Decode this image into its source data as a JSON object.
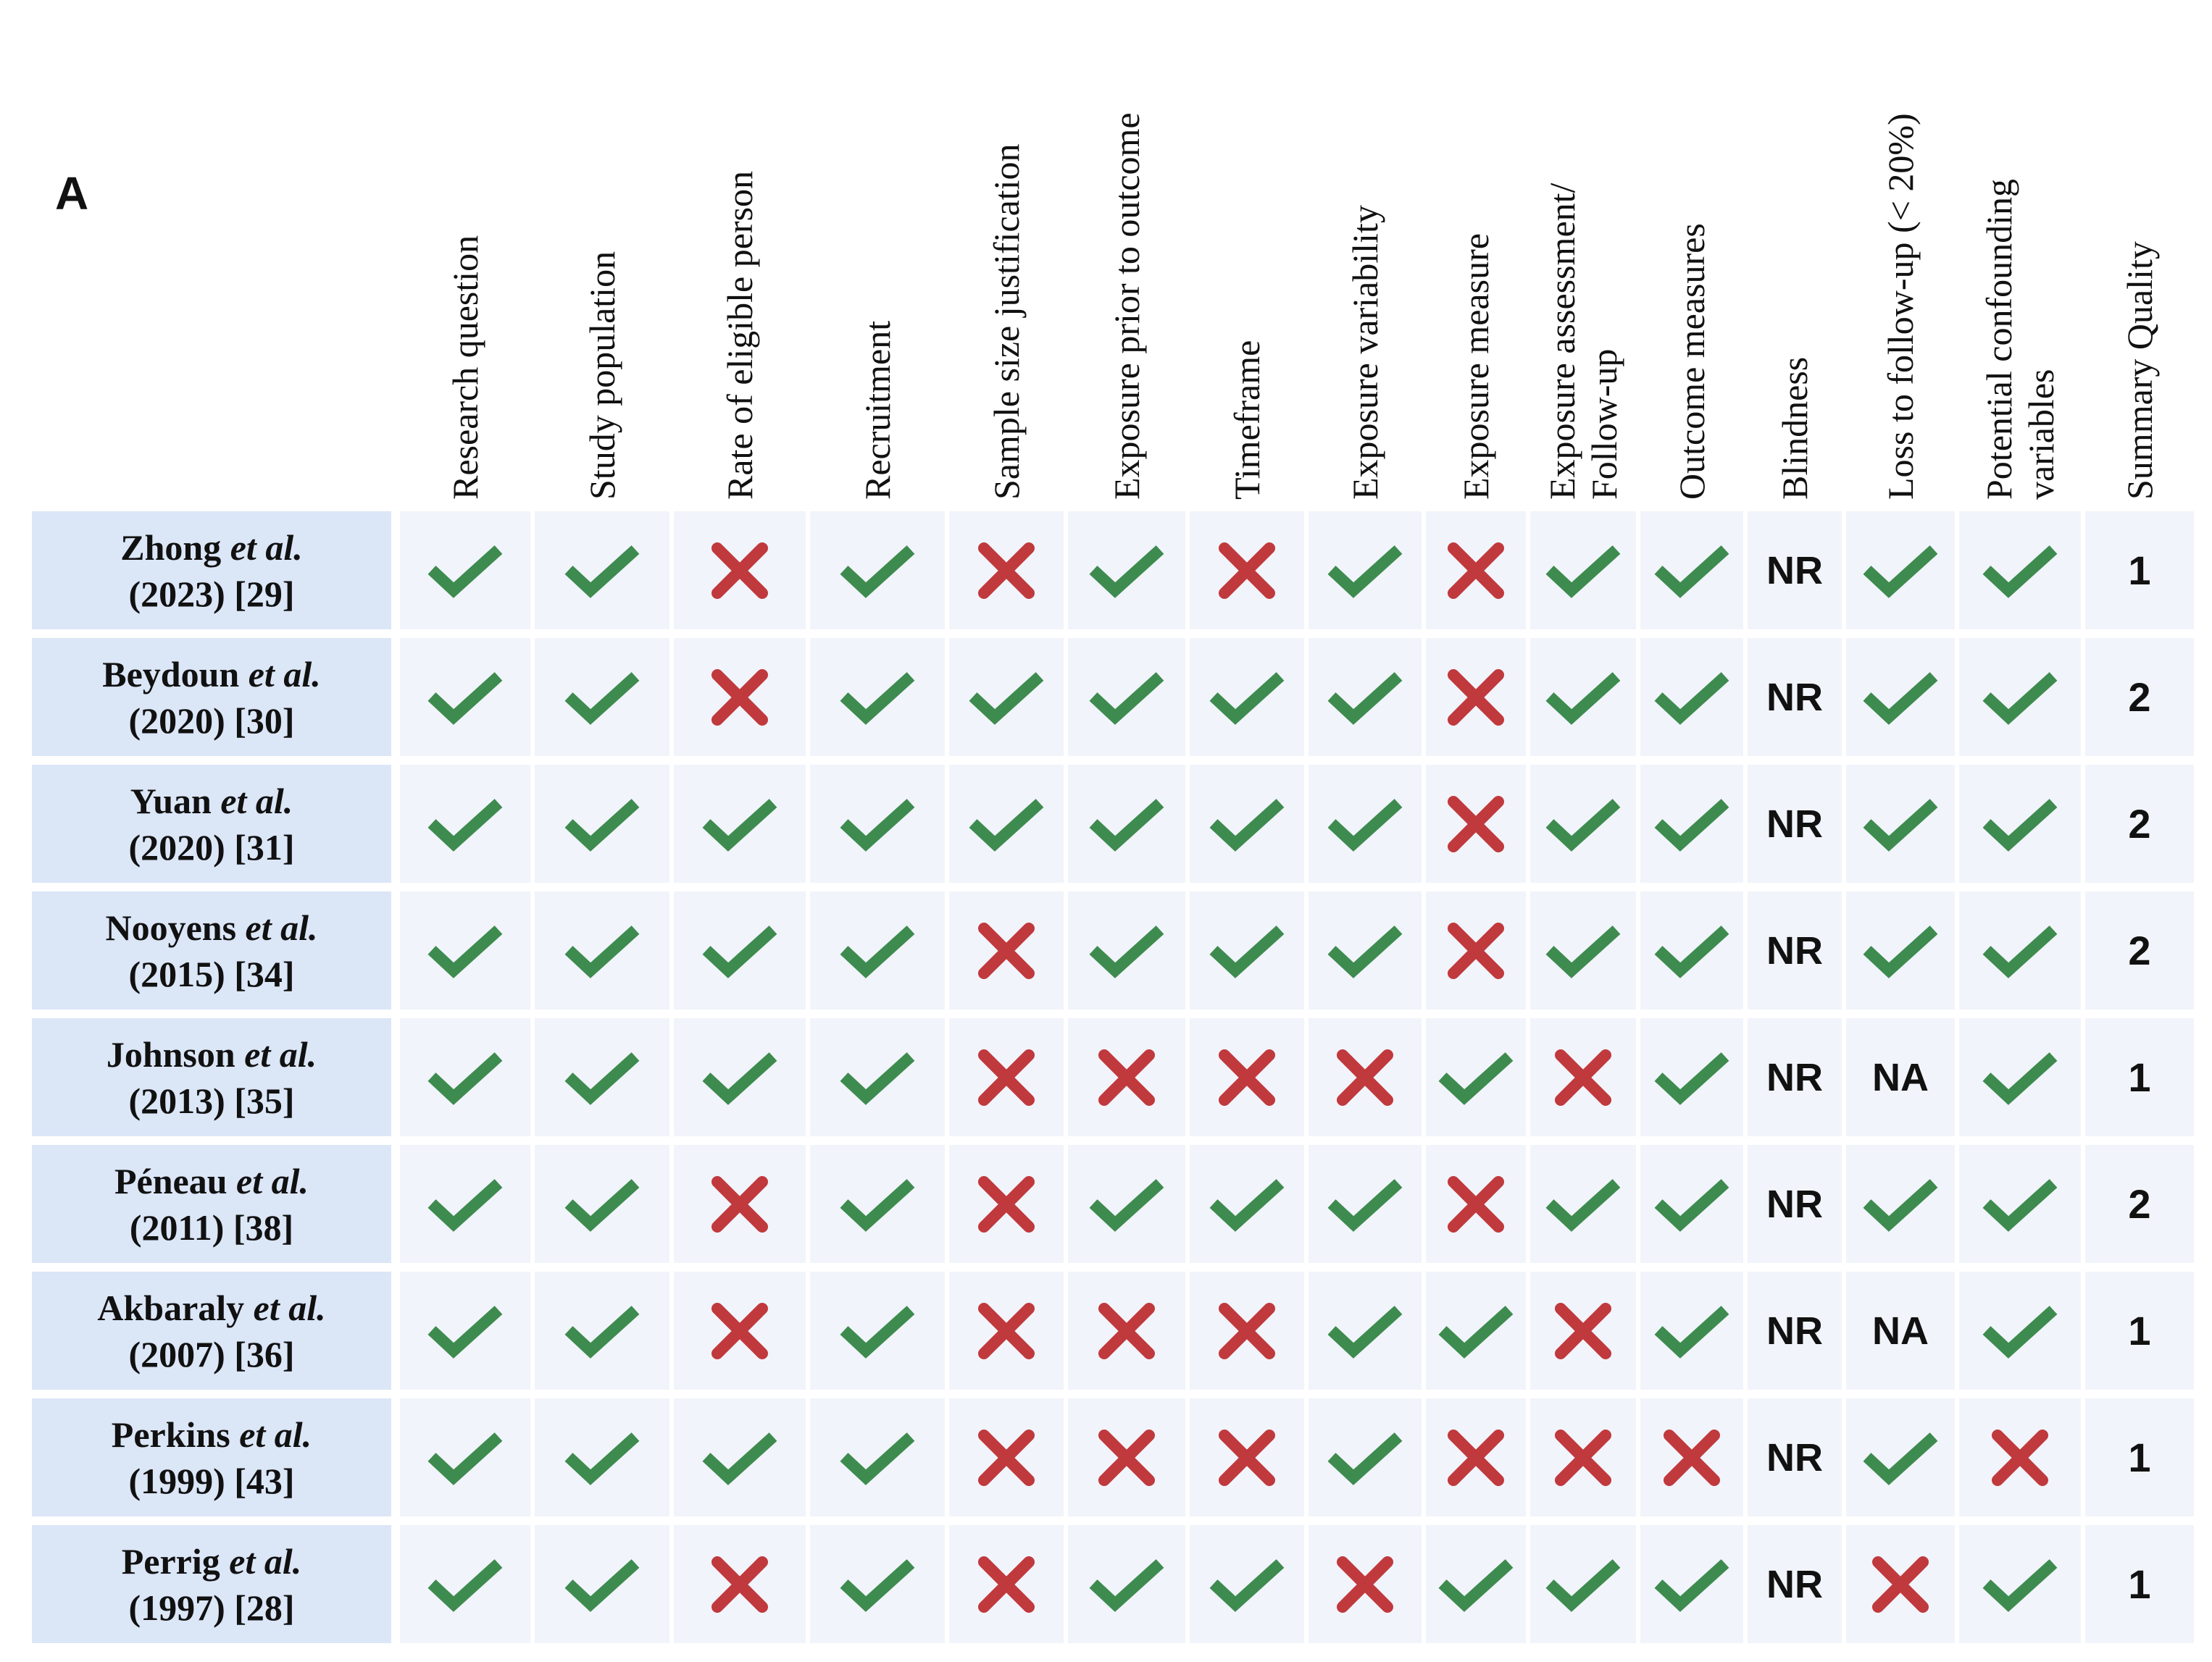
{
  "panel_label": "A",
  "colors": {
    "check": "#3e8b4f",
    "cross": "#c0393d",
    "study_bg": "#dbe6f7",
    "cell_bg": "#f1f4fa"
  },
  "chart_data": {
    "type": "table",
    "columns": [
      {
        "lines": [
          "Research question"
        ]
      },
      {
        "lines": [
          "Study population"
        ]
      },
      {
        "lines": [
          "Rate of eligible person"
        ]
      },
      {
        "lines": [
          "Recruitment"
        ]
      },
      {
        "lines": [
          "Sample size justification"
        ]
      },
      {
        "lines": [
          "Exposure prior to outcome"
        ]
      },
      {
        "lines": [
          "Timeframe"
        ]
      },
      {
        "lines": [
          "Exposure variability"
        ]
      },
      {
        "lines": [
          "Exposure measure"
        ]
      },
      {
        "lines": [
          "Exposure assessment/",
          "Follow-up"
        ]
      },
      {
        "lines": [
          "Outcome  measures"
        ]
      },
      {
        "lines": [
          "Blindness"
        ]
      },
      {
        "lines": [
          "Loss to follow-up (< 20%)"
        ]
      },
      {
        "lines": [
          "Potential confounding",
          "variables"
        ]
      },
      {
        "lines": [
          "Summary Quality"
        ]
      }
    ],
    "rows": [
      {
        "name": "Zhong",
        "etal": "et al.",
        "ref": "(2023)  [29]",
        "cells": [
          "Y",
          "Y",
          "N",
          "Y",
          "N",
          "Y",
          "N",
          "Y",
          "N",
          "Y",
          "Y",
          "NR",
          "Y",
          "Y"
        ],
        "score": "1"
      },
      {
        "name": "Beydoun",
        "etal": "et al.",
        "ref": "(2020) [30]",
        "cells": [
          "Y",
          "Y",
          "N",
          "Y",
          "Y",
          "Y",
          "Y",
          "Y",
          "N",
          "Y",
          "Y",
          "NR",
          "Y",
          "Y"
        ],
        "score": "2"
      },
      {
        "name": "Yuan",
        "etal": "et al.",
        "ref": "(2020)  [31]",
        "cells": [
          "Y",
          "Y",
          "Y",
          "Y",
          "Y",
          "Y",
          "Y",
          "Y",
          "N",
          "Y",
          "Y",
          "NR",
          "Y",
          "Y"
        ],
        "score": "2"
      },
      {
        "name": "Nooyens",
        "etal": "et al.",
        "ref": "(2015) [34]",
        "cells": [
          "Y",
          "Y",
          "Y",
          "Y",
          "N",
          "Y",
          "Y",
          "Y",
          "N",
          "Y",
          "Y",
          "NR",
          "Y",
          "Y"
        ],
        "score": "2"
      },
      {
        "name": "Johnson",
        "etal": "et al.",
        "ref": "(2013)  [35]",
        "cells": [
          "Y",
          "Y",
          "Y",
          "Y",
          "N",
          "N",
          "N",
          "N",
          "Y",
          "N",
          "Y",
          "NR",
          "NA",
          "Y"
        ],
        "score": "1"
      },
      {
        "name": "Péneau",
        "etal": "et al.",
        "ref": "(2011) [38]",
        "cells": [
          "Y",
          "Y",
          "N",
          "Y",
          "N",
          "Y",
          "Y",
          "Y",
          "N",
          "Y",
          "Y",
          "NR",
          "Y",
          "Y"
        ],
        "score": "2"
      },
      {
        "name": "Akbaraly",
        "etal": "et al.",
        "ref": "(2007)  [36]",
        "cells": [
          "Y",
          "Y",
          "N",
          "Y",
          "N",
          "N",
          "N",
          "Y",
          "Y",
          "N",
          "Y",
          "NR",
          "NA",
          "Y"
        ],
        "score": "1"
      },
      {
        "name": "Perkins",
        "etal": "et al.",
        "ref": "(1999) [43]",
        "cells": [
          "Y",
          "Y",
          "Y",
          "Y",
          "N",
          "N",
          "N",
          "Y",
          "N",
          "N",
          "N",
          "NR",
          "Y",
          "N"
        ],
        "score": "1"
      },
      {
        "name": "Perrig",
        "etal": "et al.",
        "ref": "(1997)  [28]",
        "cells": [
          "Y",
          "Y",
          "N",
          "Y",
          "N",
          "Y",
          "Y",
          "N",
          "Y",
          "Y",
          "Y",
          "NR",
          "N",
          "Y"
        ],
        "score": "1"
      }
    ]
  }
}
